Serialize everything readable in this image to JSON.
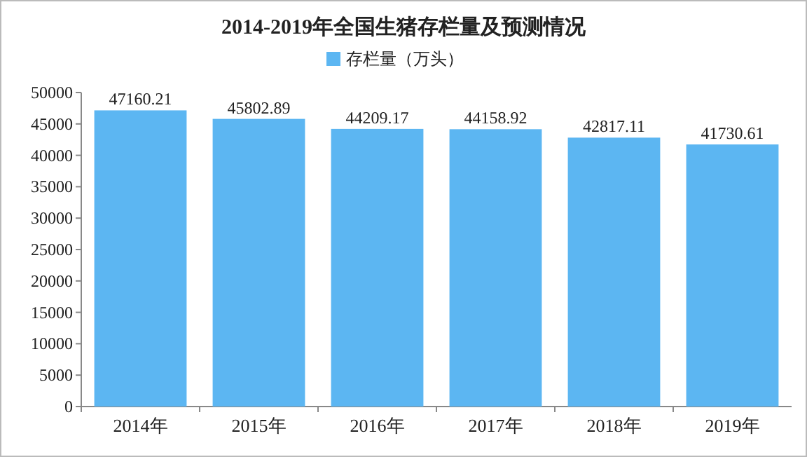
{
  "chart_data": {
    "type": "bar",
    "title": "2014-2019年全国生猪存栏量及预测情况",
    "categories": [
      "2014年",
      "2015年",
      "2016年",
      "2017年",
      "2018年",
      "2019年"
    ],
    "series": [
      {
        "name": "存栏量（万头）",
        "color": "#5cb6f2",
        "values": [
          47160.21,
          45802.89,
          44209.17,
          44158.92,
          42817.11,
          41730.61
        ]
      }
    ],
    "ylim": [
      0,
      50000
    ],
    "yticks": [
      0,
      5000,
      10000,
      15000,
      20000,
      25000,
      30000,
      35000,
      40000,
      45000,
      50000
    ],
    "data_labels": true,
    "legend": "top"
  }
}
